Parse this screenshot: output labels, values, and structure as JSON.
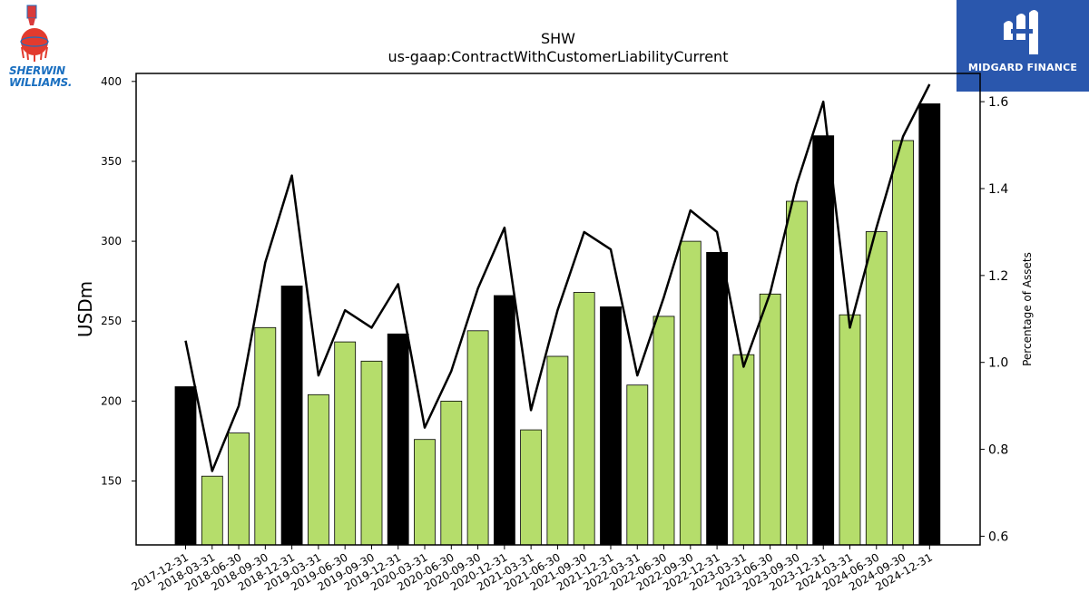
{
  "logos": {
    "left_line1": "SHERWIN",
    "left_line2": "WILLIAMS.",
    "right_name": "MIDGARD FINANCE"
  },
  "colors": {
    "year_end_bar": "#000000",
    "quarter_bar": "#b5dd6b",
    "line": "#000000",
    "brand_right": "#2a57ad",
    "brand_left": "#1a6fc0"
  },
  "chart_data": {
    "type": "bar",
    "title": "SHW",
    "subtitle": "us-gaap:ContractWithCustomerLiabilityCurrent",
    "ylabel": "USDm",
    "y2label": "Percentage of Assets",
    "ylim": [
      110,
      405
    ],
    "y2lim": [
      0.58,
      1.665
    ],
    "yticks": [
      150,
      200,
      250,
      300,
      350,
      400
    ],
    "y2ticks": [
      0.6,
      0.8,
      1.0,
      1.2,
      1.4,
      1.6
    ],
    "grid": false,
    "categories": [
      "2017-12-31",
      "2018-03-31",
      "2018-06-30",
      "2018-09-30",
      "2018-12-31",
      "2019-03-31",
      "2019-06-30",
      "2019-09-30",
      "2019-12-31",
      "2020-03-31",
      "2020-06-30",
      "2020-09-30",
      "2020-12-31",
      "2021-03-31",
      "2021-06-30",
      "2021-09-30",
      "2021-12-31",
      "2022-03-31",
      "2022-06-30",
      "2022-09-30",
      "2022-12-31",
      "2023-03-31",
      "2023-06-30",
      "2023-09-30",
      "2023-12-31",
      "2024-03-31",
      "2024-06-30",
      "2024-09-30",
      "2024-12-31"
    ],
    "series": [
      {
        "type": "bar",
        "values": [
          209,
          153,
          180,
          246,
          272,
          204,
          237,
          225,
          242,
          176,
          200,
          244,
          266,
          182,
          228,
          268,
          259,
          210,
          253,
          300,
          293,
          229,
          267,
          325,
          366,
          254,
          306,
          363,
          386
        ]
      },
      {
        "type": "line",
        "axis": "right",
        "values": [
          1.05,
          0.75,
          0.9,
          1.23,
          1.43,
          0.97,
          1.12,
          1.08,
          1.18,
          0.85,
          0.98,
          1.17,
          1.31,
          0.89,
          1.12,
          1.3,
          1.26,
          0.97,
          1.15,
          1.35,
          1.3,
          0.99,
          1.16,
          1.41,
          1.6,
          1.08,
          1.31,
          1.52,
          1.64
        ]
      }
    ]
  }
}
